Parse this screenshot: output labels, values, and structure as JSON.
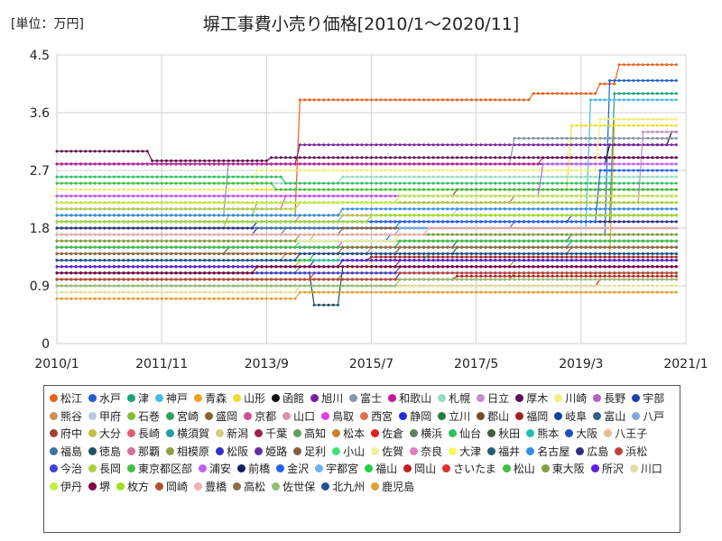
{
  "chart_data": {
    "type": "line",
    "title": "塀工事費小売り価格[2010/1～2020/11]",
    "unit_label": "[単位：万円]",
    "xlabel": "",
    "ylabel": "",
    "x_tick_labels": [
      "2010/1",
      "2011/11",
      "2013/9",
      "2015/7",
      "2017/5",
      "2019/3",
      "2021/1"
    ],
    "y_tick_labels": [
      "0",
      "0.9",
      "1.8",
      "2.7",
      "3.6",
      "4.5"
    ],
    "ylim": [
      0,
      4.5
    ],
    "grid": true,
    "legend_position": "bottom",
    "series": [
      {
        "name": "松江",
        "color": "#e8601c",
        "start": 2.0,
        "changes": [
          [
            2014.2,
            3.8
          ],
          [
            2018.3,
            3.9
          ],
          [
            2019.5,
            4.05
          ],
          [
            2019.8,
            4.35
          ]
        ]
      },
      {
        "name": "水戸",
        "color": "#1f5fd1",
        "start": 1.6,
        "changes": [
          [
            2015.8,
            1.7
          ],
          [
            2019.6,
            4.1
          ]
        ]
      },
      {
        "name": "津",
        "color": "#1aa37a",
        "start": 1.8,
        "changes": [
          [
            2016.0,
            1.9
          ],
          [
            2019.7,
            3.9
          ]
        ]
      },
      {
        "name": "神戸",
        "color": "#47b9e6",
        "start": 1.8,
        "changes": [
          [
            2019.3,
            3.8
          ]
        ]
      },
      {
        "name": "青森",
        "color": "#f0a020",
        "start": 1.2,
        "changes": [
          [
            2014.2,
            1.3
          ],
          [
            2019.7,
            3.5
          ]
        ]
      },
      {
        "name": "山形",
        "color": "#ece030",
        "start": 2.4,
        "changes": [
          [
            2019.0,
            3.4
          ]
        ]
      },
      {
        "name": "函館",
        "color": "#111111",
        "start": 2.8,
        "changes": [
          [
            2019.6,
            3.1
          ],
          [
            2020.7,
            3.3
          ]
        ]
      },
      {
        "name": "旭川",
        "color": "#7a1fa0",
        "start": 2.8,
        "changes": [
          [
            2014.2,
            3.1
          ]
        ]
      },
      {
        "name": "富士",
        "color": "#8894a8",
        "start": 2.0,
        "changes": [
          [
            2013.0,
            2.8
          ],
          [
            2018.0,
            3.2
          ]
        ]
      },
      {
        "name": "和歌山",
        "color": "#c8189a",
        "start": 2.8,
        "changes": [
          [
            2018.5,
            2.9
          ]
        ]
      },
      {
        "name": "札幌",
        "color": "#90e0c0",
        "start": 2.5,
        "changes": [
          [
            2015.0,
            2.6
          ]
        ]
      },
      {
        "name": "日立",
        "color": "#c090c8",
        "start": 2.2,
        "changes": [
          [
            2020.2,
            3.3
          ]
        ]
      },
      {
        "name": "厚木",
        "color": "#5c1050",
        "start": 3.0,
        "changes": [
          [
            2011.6,
            2.85
          ],
          [
            2013.7,
            2.9
          ]
        ]
      },
      {
        "name": "川崎",
        "color": "#f0f080",
        "start": 2.4,
        "changes": [
          [
            2013.5,
            2.7
          ],
          [
            2019.5,
            3.5
          ]
        ]
      },
      {
        "name": "長野",
        "color": "#b060c0",
        "start": 2.1,
        "changes": [
          [
            2014.0,
            2.3
          ]
        ]
      },
      {
        "name": "宇部",
        "color": "#2040b0",
        "start": 1.5,
        "changes": [
          [
            2016.0,
            1.6
          ]
        ]
      },
      {
        "name": "熊谷",
        "color": "#d09050",
        "start": 1.9,
        "changes": [
          [
            2014.2,
            2.0
          ]
        ]
      },
      {
        "name": "甲府",
        "color": "#c0c8d0",
        "start": 2.0,
        "changes": [
          [
            2017.0,
            2.1
          ]
        ]
      },
      {
        "name": "石巻",
        "color": "#80c030",
        "start": 2.0,
        "changes": [
          [
            2013.5,
            2.2
          ]
        ]
      },
      {
        "name": "宮崎",
        "color": "#30a060",
        "start": 1.4,
        "changes": [
          [
            2015.0,
            1.5
          ]
        ]
      },
      {
        "name": "盛岡",
        "color": "#806830",
        "start": 1.6,
        "changes": [
          [
            2014.5,
            1.7
          ]
        ]
      },
      {
        "name": "京都",
        "color": "#d05090",
        "start": 2.2,
        "changes": [
          [
            2018.0,
            2.3
          ]
        ]
      },
      {
        "name": "山口",
        "color": "#e090b0",
        "start": 1.7,
        "changes": [
          [
            2016.5,
            1.8
          ]
        ]
      },
      {
        "name": "鳥取",
        "color": "#e040e0",
        "start": 1.5,
        "changes": [
          [
            2015.0,
            1.6
          ]
        ]
      },
      {
        "name": "西宮",
        "color": "#e07050",
        "start": 1.3,
        "changes": [
          [
            2014.0,
            1.4
          ]
        ]
      },
      {
        "name": "静岡",
        "color": "#2030e0",
        "start": 1.7,
        "changes": [
          [
            2013.5,
            1.8
          ]
        ]
      },
      {
        "name": "立川",
        "color": "#208040",
        "start": 1.6,
        "changes": [
          [
            2019.0,
            1.7
          ]
        ]
      },
      {
        "name": "郡山",
        "color": "#705020",
        "start": 1.4,
        "changes": [
          [
            2016.0,
            1.5
          ]
        ]
      },
      {
        "name": "福岡",
        "color": "#a02020",
        "start": 1.3,
        "changes": [
          [
            2015.5,
            1.35
          ]
        ]
      },
      {
        "name": "岐阜",
        "color": "#1040a0",
        "start": 1.2,
        "changes": [
          [
            2014.5,
            1.3
          ]
        ]
      },
      {
        "name": "富山",
        "color": "#306080",
        "start": 1.1,
        "changes": [
          [
            2014.2,
            1.2
          ]
        ]
      },
      {
        "name": "八戸",
        "color": "#80a8e0",
        "start": 1.9,
        "changes": [
          [
            2015.0,
            2.0
          ]
        ]
      },
      {
        "name": "府中",
        "color": "#a04030",
        "start": 2.3,
        "changes": [
          [
            2017.0,
            2.4
          ]
        ]
      },
      {
        "name": "大分",
        "color": "#c0c040",
        "start": 1.8,
        "changes": [
          [
            2013.0,
            2.0
          ]
        ]
      },
      {
        "name": "長崎",
        "color": "#e06070",
        "start": 1.6,
        "changes": [
          [
            2016.0,
            1.7
          ]
        ]
      },
      {
        "name": "横須賀",
        "color": "#20a0a0",
        "start": 1.5,
        "changes": [
          [
            2019.0,
            1.6
          ]
        ]
      },
      {
        "name": "新潟",
        "color": "#d0d080",
        "start": 1.3,
        "changes": [
          [
            2015.0,
            1.4
          ]
        ]
      },
      {
        "name": "千葉",
        "color": "#a02050",
        "start": 1.2,
        "changes": [
          [
            2016.0,
            1.3
          ]
        ]
      },
      {
        "name": "高知",
        "color": "#60a060",
        "start": 1.1,
        "changes": [
          [
            2014.2,
            1.2
          ]
        ]
      },
      {
        "name": "松本",
        "color": "#d08030",
        "start": 1.0,
        "changes": [
          [
            2015.0,
            1.1
          ]
        ]
      },
      {
        "name": "佐倉",
        "color": "#e02020",
        "start": 0.9,
        "changes": [
          [
            2019.5,
            1.0
          ]
        ]
      },
      {
        "name": "横浜",
        "color": "#608060",
        "start": 1.7,
        "changes": [
          [
            2014.0,
            1.8
          ]
        ]
      },
      {
        "name": "仙台",
        "color": "#30c060",
        "start": 2.6,
        "changes": [
          [
            2014.0,
            2.5
          ]
        ]
      },
      {
        "name": "秋田",
        "color": "#406040",
        "start": 1.4,
        "changes": [
          [
            2013.0,
            1.5
          ]
        ]
      },
      {
        "name": "熊本",
        "color": "#20c0b0",
        "start": 1.3,
        "changes": [
          [
            2016.5,
            1.4
          ]
        ]
      },
      {
        "name": "大阪",
        "color": "#2050c0",
        "start": 1.5,
        "changes": [
          [
            2017.0,
            1.6
          ]
        ]
      },
      {
        "name": "八王子",
        "color": "#e0c090",
        "start": 1.6,
        "changes": [
          [
            2014.5,
            1.7
          ]
        ]
      },
      {
        "name": "福島",
        "color": "#4070a0",
        "start": 1.8,
        "changes": [
          [
            2018.0,
            1.9
          ]
        ]
      },
      {
        "name": "徳島",
        "color": "#205060",
        "start": 1.1,
        "changes": [
          [
            2014.5,
            0.6
          ],
          [
            2015.0,
            1.2
          ]
        ]
      },
      {
        "name": "那覇",
        "color": "#d070a0",
        "start": 1.4,
        "changes": [
          [
            2015.5,
            1.5
          ]
        ]
      },
      {
        "name": "相模原",
        "color": "#90a040",
        "start": 1.2,
        "changes": [
          [
            2018.0,
            1.3
          ]
        ]
      },
      {
        "name": "松阪",
        "color": "#3030c0",
        "start": 1.0,
        "changes": [
          [
            2016.0,
            1.1
          ]
        ]
      },
      {
        "name": "姫路",
        "color": "#6030a0",
        "start": 1.9,
        "changes": [
          [
            2019.0,
            2.0
          ]
        ]
      },
      {
        "name": "足利",
        "color": "#806040",
        "start": 1.7,
        "changes": [
          [
            2015.0,
            1.8
          ]
        ]
      },
      {
        "name": "小山",
        "color": "#40e080",
        "start": 1.5,
        "changes": [
          [
            2014.2,
            1.6
          ]
        ]
      },
      {
        "name": "佐賀",
        "color": "#f0f0a0",
        "start": 1.6,
        "changes": [
          [
            2016.0,
            1.7
          ]
        ]
      },
      {
        "name": "奈良",
        "color": "#e080c0",
        "start": 1.3,
        "changes": [
          [
            2014.2,
            1.4
          ]
        ]
      },
      {
        "name": "大津",
        "color": "#f8f860",
        "start": 1.2,
        "changes": [
          [
            2015.5,
            1.3
          ]
        ]
      },
      {
        "name": "福井",
        "color": "#206070",
        "start": 1.4,
        "changes": [
          [
            2017.0,
            1.5
          ]
        ]
      },
      {
        "name": "名古屋",
        "color": "#3090e0",
        "start": 2.0,
        "changes": [
          [
            2015.0,
            2.1
          ]
        ]
      },
      {
        "name": "広島",
        "color": "#303080",
        "start": 1.8,
        "changes": [
          [
            2013.5,
            1.9
          ]
        ]
      },
      {
        "name": "浜松",
        "color": "#c04040",
        "start": 1.0,
        "changes": [
          [
            2014.5,
            1.1
          ]
        ]
      },
      {
        "name": "今治",
        "color": "#4040d0",
        "start": 1.1,
        "changes": [
          [
            2016.0,
            1.2
          ]
        ]
      },
      {
        "name": "長岡",
        "color": "#b0d040",
        "start": 2.1,
        "changes": [
          [
            2014.2,
            2.2
          ]
        ]
      },
      {
        "name": "東京都区部",
        "color": "#40c040",
        "start": 2.5,
        "changes": [
          [
            2013.8,
            2.4
          ]
        ]
      },
      {
        "name": "浦安",
        "color": "#c060f0",
        "start": 2.3,
        "changes": [
          [
            2018.5,
            2.8
          ]
        ]
      },
      {
        "name": "前橋",
        "color": "#102060",
        "start": 1.2,
        "changes": [
          [
            2015.0,
            1.3
          ]
        ]
      },
      {
        "name": "金沢",
        "color": "#2060f0",
        "start": 1.9,
        "changes": [
          [
            2019.5,
            2.7
          ]
        ]
      },
      {
        "name": "宇都宮",
        "color": "#70b0f0",
        "start": 1.7,
        "changes": [
          [
            2016.0,
            1.8
          ]
        ]
      },
      {
        "name": "福山",
        "color": "#20d040",
        "start": 1.3,
        "changes": [
          [
            2014.5,
            1.4
          ]
        ]
      },
      {
        "name": "岡山",
        "color": "#c02020",
        "start": 1.0,
        "changes": [
          [
            2017.0,
            1.05
          ]
        ]
      },
      {
        "name": "さいたま",
        "color": "#e03030",
        "start": 1.4,
        "changes": [
          [
            2019.0,
            1.5
          ]
        ]
      },
      {
        "name": "松山",
        "color": "#40c040",
        "start": 1.5,
        "changes": [
          [
            2016.0,
            1.6
          ]
        ]
      },
      {
        "name": "東大阪",
        "color": "#80a040",
        "start": 1.6,
        "changes": [
          [
            2014.2,
            1.7
          ]
        ]
      },
      {
        "name": "所沢",
        "color": "#6020e0",
        "start": 1.2,
        "changes": [
          [
            2015.0,
            1.3
          ]
        ]
      },
      {
        "name": "川口",
        "color": "#e0e0a0",
        "start": 0.8,
        "changes": [
          [
            2014.2,
            0.9
          ]
        ]
      },
      {
        "name": "伊丹",
        "color": "#c0f040",
        "start": 2.2,
        "changes": [
          [
            2016.0,
            2.3
          ]
        ]
      },
      {
        "name": "堺",
        "color": "#800040",
        "start": 1.1,
        "changes": [
          [
            2013.5,
            1.2
          ]
        ]
      },
      {
        "name": "枚方",
        "color": "#a0e020",
        "start": 1.9,
        "changes": [
          [
            2015.5,
            2.0
          ]
        ]
      },
      {
        "name": "岡崎",
        "color": "#b05030",
        "start": 1.0,
        "changes": [
          [
            2018.0,
            1.1
          ]
        ]
      },
      {
        "name": "豊橋",
        "color": "#f0b0b0",
        "start": 1.7,
        "changes": [
          [
            2016.5,
            1.8
          ]
        ]
      },
      {
        "name": "高松",
        "color": "#907040",
        "start": 1.4,
        "changes": [
          [
            2015.0,
            1.5
          ]
        ]
      },
      {
        "name": "佐世保",
        "color": "#90c070",
        "start": 0.9,
        "changes": [
          [
            2016.0,
            1.0
          ]
        ]
      },
      {
        "name": "北九州",
        "color": "#205090",
        "start": 1.3,
        "changes": [
          [
            2014.2,
            1.4
          ]
        ]
      },
      {
        "name": "鹿児島",
        "color": "#e0a030",
        "start": 0.7,
        "changes": [
          [
            2014.2,
            0.8
          ]
        ]
      }
    ]
  }
}
